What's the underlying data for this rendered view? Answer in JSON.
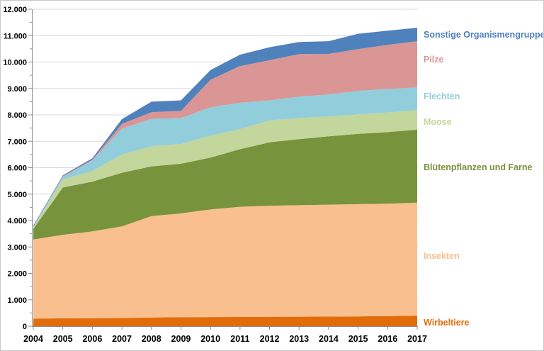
{
  "chart_data": {
    "type": "area",
    "stacked": true,
    "title": "",
    "xlabel": "",
    "ylabel": "",
    "categories": [
      "2004",
      "2005",
      "2006",
      "2007",
      "2008",
      "2009",
      "2010",
      "2011",
      "2012",
      "2013",
      "2014",
      "2015",
      "2016",
      "2017"
    ],
    "series": [
      {
        "name": "Wirbeltiere",
        "color": "#E36C0A",
        "values": [
          290,
          295,
          300,
          310,
          330,
          340,
          345,
          350,
          355,
          360,
          365,
          370,
          380,
          400
        ]
      },
      {
        "name": "Insekten",
        "color": "#FABF8F",
        "values": [
          2990,
          3165,
          3290,
          3470,
          3840,
          3930,
          4075,
          4170,
          4205,
          4220,
          4235,
          4250,
          4260,
          4280
        ]
      },
      {
        "name": "Blütenpflanzen und Farne",
        "color": "#77933C",
        "values": [
          400,
          1790,
          1880,
          2030,
          1880,
          1880,
          1960,
          2180,
          2400,
          2500,
          2590,
          2660,
          2710,
          2760
        ]
      },
      {
        "name": "Moose",
        "color": "#C3D69B",
        "values": [
          40,
          310,
          400,
          690,
          760,
          750,
          830,
          760,
          830,
          800,
          750,
          740,
          740,
          740
        ]
      },
      {
        "name": "Flechten",
        "color": "#92CDDC",
        "values": [
          30,
          90,
          400,
          980,
          1040,
          980,
          1080,
          1000,
          760,
          810,
          830,
          890,
          890,
          860
        ]
      },
      {
        "name": "Pilze",
        "color": "#D99694",
        "values": [
          20,
          30,
          40,
          180,
          250,
          270,
          1040,
          1390,
          1520,
          1610,
          1540,
          1580,
          1670,
          1750
        ]
      },
      {
        "name": "Sonstige Organismengruppen",
        "color": "#4F81BD",
        "values": [
          30,
          30,
          50,
          180,
          400,
          400,
          370,
          430,
          490,
          460,
          480,
          580,
          540,
          510
        ]
      }
    ],
    "totals": [
      3800,
      5710,
      6360,
      7840,
      8500,
      8550,
      9700,
      10280,
      10560,
      10760,
      10790,
      11070,
      11190,
      11300
    ],
    "ylim": [
      0,
      12000
    ],
    "y_major_step": 1000,
    "y_minor_step": 500,
    "y_tick_labels": [
      "0",
      "1.000",
      "2.000",
      "3.000",
      "4.000",
      "5.000",
      "6.000",
      "7.000",
      "8.000",
      "9.000",
      "10.000",
      "11.000",
      "12.000"
    ],
    "grid": true,
    "grid_color": "#D9D9D9",
    "axis_color": "#8C8C8C",
    "tick_label_color": "#000000",
    "legend_position": "right"
  }
}
